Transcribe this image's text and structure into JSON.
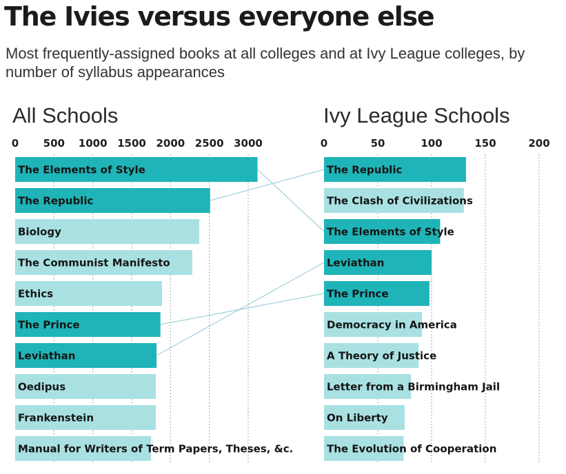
{
  "title": "The Ivies versus everyone else",
  "subtitle": "Most frequently-assigned books at all colleges and at Ivy League colleges, by number of syllabus appearances",
  "colors": {
    "highlight": "#1fb4b8",
    "normal": "#a9e1e3",
    "connector": "#8cc6d4",
    "grid": "#9a9a9a"
  },
  "chart_data": [
    {
      "type": "bar",
      "orientation": "horizontal",
      "title": "All Schools",
      "xlim": [
        0,
        3000
      ],
      "ticks": [
        0,
        500,
        1000,
        1500,
        2000,
        2500,
        3000
      ],
      "categories": [
        "The Elements of Style",
        "The Republic",
        "Biology",
        "The Communist Manifesto",
        "Ethics",
        "The Prince",
        "Leviathan",
        "Oedipus",
        "Frankenstein",
        "Manual for Writers of Term Papers, Theses, &c."
      ],
      "values": [
        3120,
        2510,
        2370,
        2280,
        1890,
        1870,
        1820,
        1810,
        1810,
        1750
      ],
      "highlighted": [
        "The Elements of Style",
        "The Republic",
        "The Prince",
        "Leviathan"
      ]
    },
    {
      "type": "bar",
      "orientation": "horizontal",
      "title": "Ivy League Schools",
      "xlim": [
        0,
        200
      ],
      "ticks": [
        0,
        50,
        100,
        150,
        200
      ],
      "categories": [
        "The Republic",
        "The Clash of Civilizations",
        "The Elements of Style",
        "Leviathan",
        "The Prince",
        "Democracy in America",
        "A Theory of Justice",
        "Letter from a Birmingham Jail",
        "On Liberty",
        "The Evolution of Cooperation"
      ],
      "values": [
        132,
        130,
        108,
        100,
        98,
        91,
        88,
        81,
        75,
        74
      ],
      "highlighted": [
        "The Republic",
        "The Elements of Style",
        "Leviathan",
        "The Prince"
      ]
    }
  ]
}
